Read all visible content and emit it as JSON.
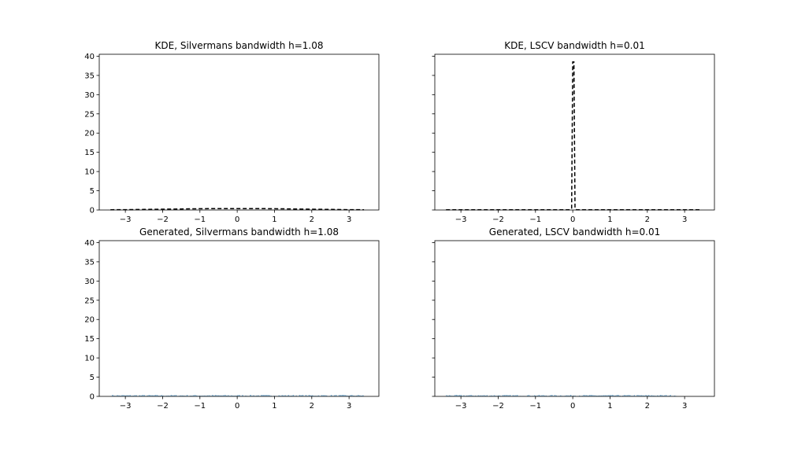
{
  "chart_data": [
    {
      "type": "line",
      "title": "KDE, Silvermans bandwidth h=1.08",
      "xlim": [
        -3.7,
        3.8
      ],
      "ylim": [
        0,
        40.5
      ],
      "xticks": [
        -3,
        -2,
        -1,
        0,
        1,
        2,
        3
      ],
      "yticks": [
        0,
        5,
        10,
        15,
        20,
        25,
        30,
        35,
        40
      ],
      "show_ytick_labels": true,
      "line_color": "#000000",
      "line_style": "dashed",
      "x": [
        -3.4,
        -3.0,
        -2.5,
        -2.0,
        -1.5,
        -1.0,
        -0.5,
        0.0,
        0.5,
        1.0,
        1.5,
        2.0,
        2.5,
        3.0,
        3.4
      ],
      "y": [
        0.06,
        0.09,
        0.14,
        0.2,
        0.27,
        0.32,
        0.36,
        0.37,
        0.36,
        0.32,
        0.27,
        0.2,
        0.14,
        0.09,
        0.06
      ]
    },
    {
      "type": "line",
      "title": "KDE, LSCV bandwidth h=0.01",
      "xlim": [
        -3.7,
        3.8
      ],
      "ylim": [
        0,
        40.5
      ],
      "xticks": [
        -3,
        -2,
        -1,
        0,
        1,
        2,
        3
      ],
      "yticks": [
        0,
        5,
        10,
        15,
        20,
        25,
        30,
        35,
        40
      ],
      "show_ytick_labels": false,
      "line_color": "#000000",
      "line_style": "dashed",
      "x": [
        -3.4,
        -2.0,
        -1.0,
        -0.1,
        -0.03,
        0.0,
        0.03,
        0.06,
        0.1,
        1.0,
        2.0,
        3.4
      ],
      "y": [
        0.05,
        0.05,
        0.05,
        0.05,
        0.3,
        38.5,
        38.5,
        0.3,
        0.05,
        0.05,
        0.05,
        0.05
      ]
    },
    {
      "type": "bar",
      "title": "Generated, Silvermans bandwidth h=1.08",
      "xlim": [
        -3.7,
        3.8
      ],
      "ylim": [
        0,
        40.5
      ],
      "xticks": [
        -3,
        -2,
        -1,
        0,
        1,
        2,
        3
      ],
      "yticks": [
        0,
        5,
        10,
        15,
        20,
        25,
        30,
        35,
        40
      ],
      "show_ytick_labels": true,
      "bar_color": "#1f77b4",
      "x_range": [
        -3.4,
        3.4
      ],
      "approx_max_height": 0.4
    },
    {
      "type": "bar",
      "title": "Generated, LSCV bandwidth h=0.01",
      "xlim": [
        -3.7,
        3.8
      ],
      "ylim": [
        0,
        40.5
      ],
      "xticks": [
        -3,
        -2,
        -1,
        0,
        1,
        2,
        3
      ],
      "yticks": [
        0,
        5,
        10,
        15,
        20,
        25,
        30,
        35,
        40
      ],
      "show_ytick_labels": false,
      "bar_color": "#1f77b4",
      "x_range": [
        -3.4,
        2.8
      ],
      "approx_max_height": 0.4
    }
  ]
}
